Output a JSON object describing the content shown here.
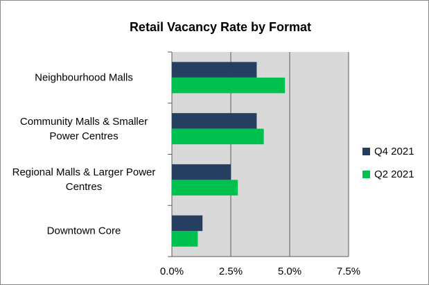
{
  "chart_data": {
    "type": "hbar",
    "title": "Retail Vacancy Rate by Format",
    "categories": [
      "Neighbourhood Malls",
      "Community Malls & Smaller Power Centres",
      "Regional Malls & Larger Power Centres",
      "Downtown Core"
    ],
    "series": [
      {
        "name": "Q4 2021",
        "color": "#243f60",
        "values": [
          3.6,
          3.6,
          2.5,
          1.3
        ]
      },
      {
        "name": "Q2 2021",
        "color": "#00c050",
        "values": [
          4.8,
          3.9,
          2.8,
          1.1
        ]
      }
    ],
    "xlim": [
      0,
      7.5
    ],
    "xticks": [
      {
        "value": 0,
        "label": "0.0%"
      },
      {
        "value": 2.5,
        "label": "2.5%"
      },
      {
        "value": 5,
        "label": "5.0%"
      },
      {
        "value": 7.5,
        "label": "7.5%"
      }
    ],
    "grid": true,
    "legend": "right"
  }
}
